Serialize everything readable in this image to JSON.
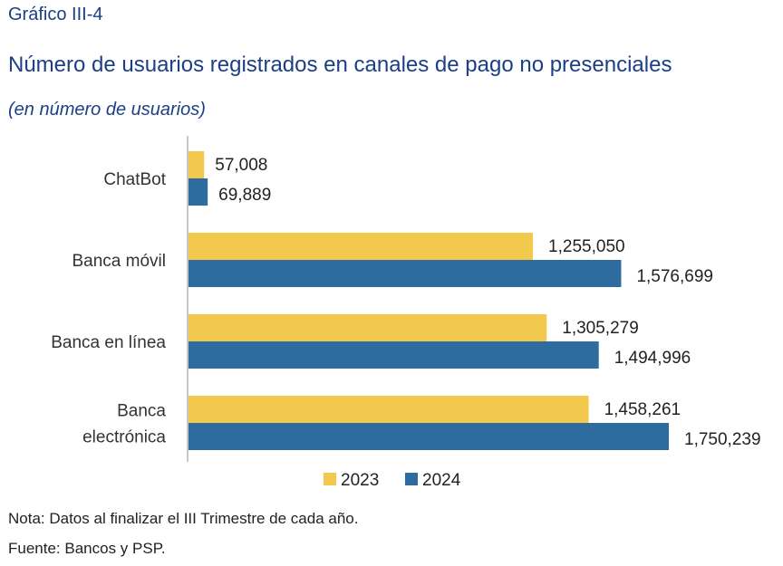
{
  "header": {
    "figure_number": "Gráfico III-4",
    "title": "Número de usuarios registrados en canales de pago no presenciales",
    "subtitle": "(en número de usuarios)"
  },
  "footer": {
    "note": "Nota: Datos al finalizar el III Trimestre de cada año.",
    "source": "Fuente: Bancos y PSP."
  },
  "colors": {
    "series_2023": "#f2c94c",
    "series_2024": "#2e6b9e",
    "axis": "#c8c8c8"
  },
  "chart_data": {
    "type": "bar",
    "orientation": "horizontal",
    "title": "Número de usuarios registrados en canales de pago no presenciales",
    "subtitle": "(en número de usuarios)",
    "categories": [
      {
        "label_lines": [
          "ChatBot"
        ]
      },
      {
        "label_lines": [
          "Banca móvil"
        ]
      },
      {
        "label_lines": [
          "Banca en línea"
        ]
      },
      {
        "label_lines": [
          "Banca",
          "electrónica"
        ]
      }
    ],
    "series": [
      {
        "name": "2023",
        "values": [
          57008,
          1255050,
          1305279,
          1458261
        ],
        "value_labels": [
          "57,008",
          "1,255,050",
          "1,305,279",
          "1,458,261"
        ]
      },
      {
        "name": "2024",
        "values": [
          69889,
          1576699,
          1494996,
          1750239
        ],
        "value_labels": [
          "69,889",
          "1,576,699",
          "1,494,996",
          "1,750,239"
        ]
      }
    ],
    "xlim": [
      0,
      1750239
    ],
    "grid": false,
    "legend": "bottom"
  }
}
